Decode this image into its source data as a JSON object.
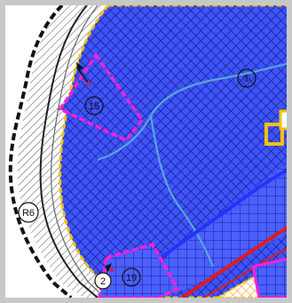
{
  "map": {
    "labels": {
      "zone_main": "①",
      "zone_magenta_top": "15",
      "zone_left": "R6",
      "zone_bottom_a": "2",
      "zone_bottom_b": "19"
    },
    "colors": {
      "fill_blue": "#3d54ff",
      "hatch_dark": "#1a1a7a",
      "hatch_orange": "#ff9a2a",
      "dashed_border": "#111111",
      "magenta_outline": "#ff1fd6",
      "yellow_outline": "#f2c200",
      "red_road": "#e11b1b",
      "blue_road": "#2433ff",
      "river": "#58a6d8",
      "grey_band": "#b9b9b9",
      "frame_bg": "#c8c8c8"
    },
    "icons": [
      "north-arrow-icon"
    ]
  }
}
